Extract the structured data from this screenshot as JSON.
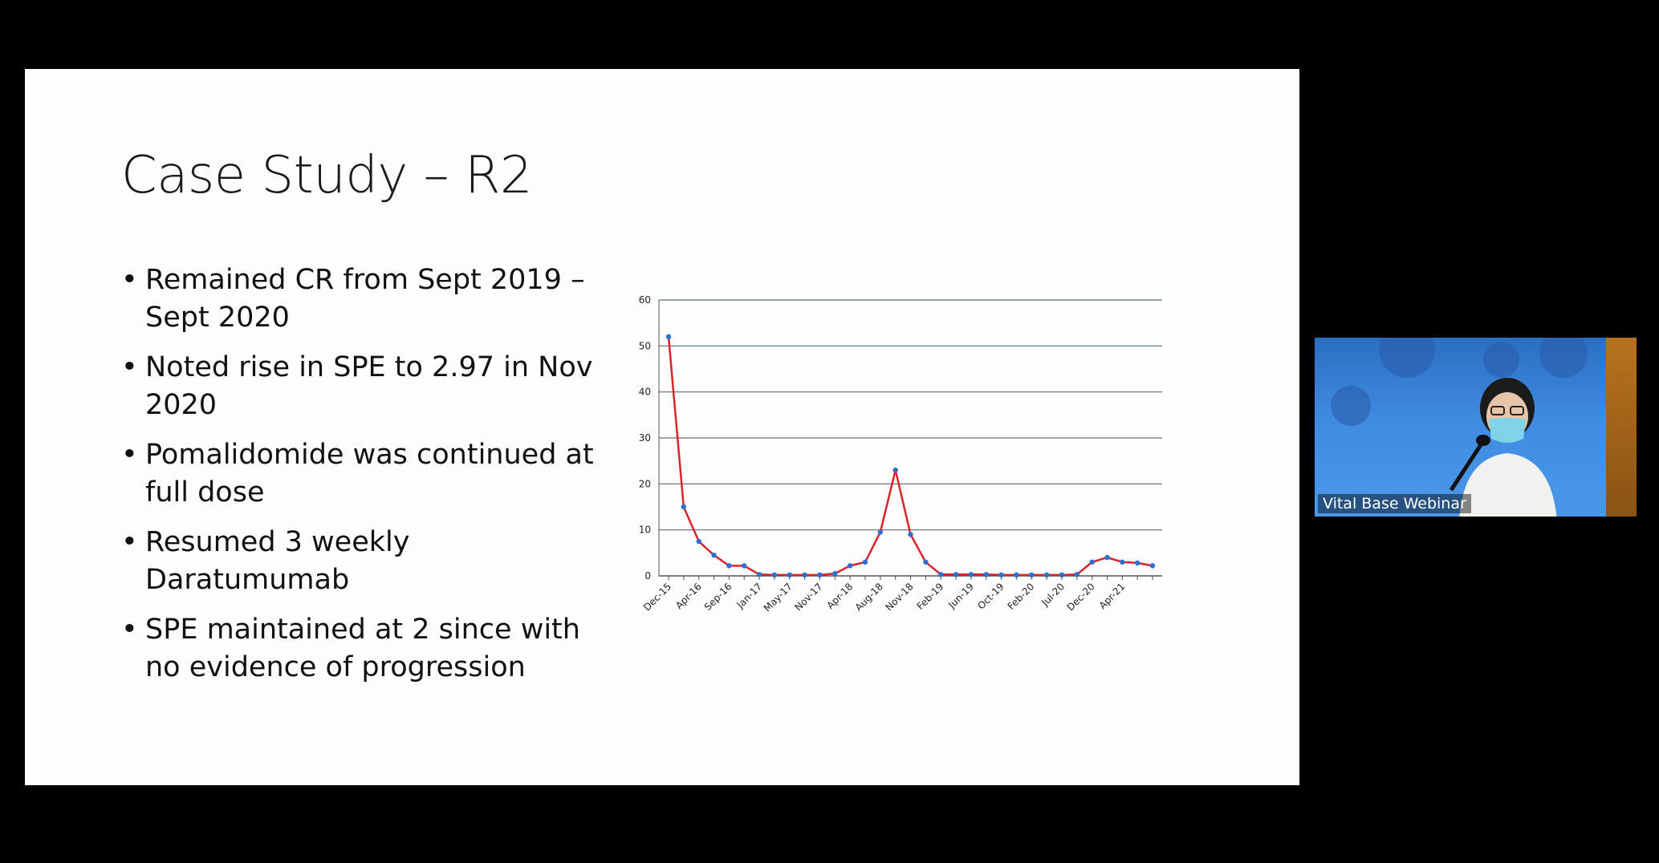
{
  "slide": {
    "title": "Case Study – R2",
    "bullets": [
      "Remained CR from Sept 2019 – Sept 2020",
      "Noted rise in SPE to 2.97 in Nov 2020",
      "Pomalidomide was continued at full dose",
      "Resumed 3 weekly Daratumumab",
      "SPE maintained at 2 since with no evidence of progression"
    ]
  },
  "chart_data": {
    "type": "line",
    "title": "",
    "xlabel": "",
    "ylabel": "",
    "ylim": [
      0,
      60
    ],
    "yticks": [
      "0",
      "10",
      "20",
      "30",
      "40",
      "50",
      "60"
    ],
    "grid": true,
    "legend": "none",
    "line_color": "#d8232a",
    "marker_color": "#2e6fd1",
    "tick_labels": [
      {
        "index": 0,
        "label": "Dec-15"
      },
      {
        "index": 2,
        "label": "Apr-16"
      },
      {
        "index": 4,
        "label": "Sep-16"
      },
      {
        "index": 6,
        "label": "Jan-17"
      },
      {
        "index": 8,
        "label": "May-17"
      },
      {
        "index": 10,
        "label": "Nov-17"
      },
      {
        "index": 12,
        "label": "Apr-18"
      },
      {
        "index": 14,
        "label": "Aug-18"
      },
      {
        "index": 16,
        "label": "Nov-18"
      },
      {
        "index": 18,
        "label": "Feb-19"
      },
      {
        "index": 20,
        "label": "Jun-19"
      },
      {
        "index": 22,
        "label": "Oct-19"
      },
      {
        "index": 24,
        "label": "Feb-20"
      },
      {
        "index": 26,
        "label": "Jul-20"
      },
      {
        "index": 28,
        "label": "Dec-20"
      },
      {
        "index": 30,
        "label": "Apr-21"
      }
    ],
    "values": [
      52,
      15,
      7.5,
      4.5,
      2.2,
      2.2,
      0.3,
      0.2,
      0.2,
      0.2,
      0.2,
      0.5,
      2.2,
      3,
      9.5,
      23,
      9,
      3,
      0.3,
      0.3,
      0.3,
      0.3,
      0.2,
      0.2,
      0.2,
      0.2,
      0.2,
      0.3,
      3,
      4,
      3,
      2.8,
      2.2
    ]
  },
  "video": {
    "caption": "Vital Base Webinar"
  }
}
